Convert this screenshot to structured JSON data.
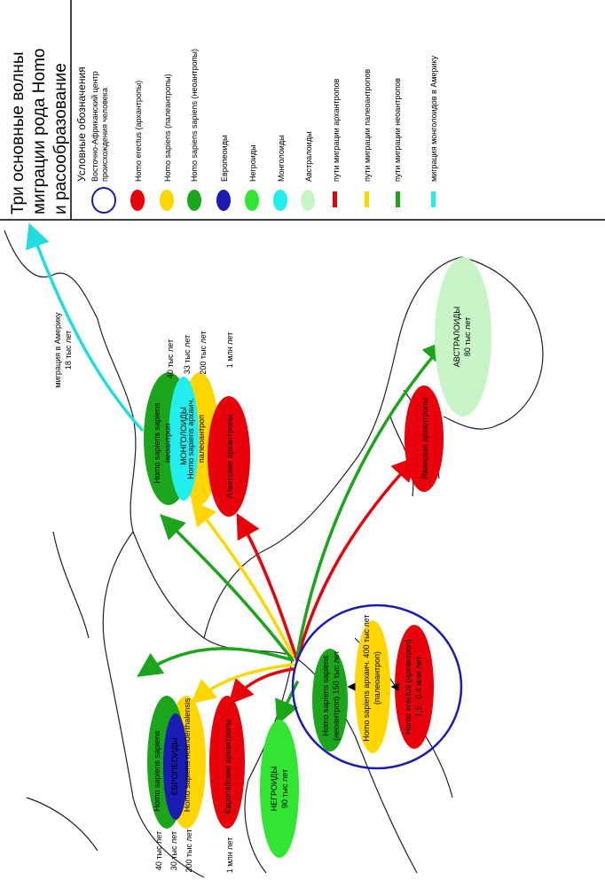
{
  "title": [
    "Три основные волны",
    "миграции рода Homo",
    "и расообразование"
  ],
  "legend": {
    "title": "Условные обозначения",
    "items": [
      {
        "lines": [
          "Восточно-Африканский центр",
          "происхождения человека"
        ]
      },
      {
        "lines": [
          "Homo erectus (архантропы)"
        ]
      },
      {
        "lines": [
          "Homo sapiens  (палеантропы)"
        ]
      },
      {
        "lines": [
          "Homo sapiens sapiens  (неоантропы)"
        ]
      },
      {
        "lines": [
          "Европеоиды"
        ]
      },
      {
        "lines": [
          "Негроиды"
        ]
      },
      {
        "lines": [
          "Монголоиды"
        ]
      },
      {
        "lines": [
          "Австралоиды"
        ]
      },
      {
        "lines": [
          "пути миграции архантропов"
        ]
      },
      {
        "lines": [
          "пути миграции палеоантропов"
        ]
      },
      {
        "lines": [
          "пути миграции неоантропов"
        ]
      },
      {
        "lines": [
          "миграция монголоидов в Америку"
        ]
      }
    ]
  },
  "labels": [
    {
      "lines": [
        "миграция в Америку",
        "18 тыс лет"
      ]
    },
    {
      "lines": [
        "Homo sapiens sapiens",
        "неоантроп"
      ]
    },
    {
      "lines": [
        "МОНГОЛОИДЫ"
      ]
    },
    {
      "lines": [
        "Homo sapiens архаич.",
        "палеоантроп"
      ]
    },
    {
      "lines": [
        "40 тыс лет"
      ]
    },
    {
      "lines": [
        "33 тыс лет"
      ]
    },
    {
      "lines": [
        "200 тыс лет"
      ]
    },
    {
      "lines": [
        "Азиатские архантропы"
      ]
    },
    {
      "lines": [
        "1 млн лет"
      ]
    },
    {
      "lines": [
        "Яванские архантропы"
      ]
    },
    {
      "lines": [
        "АВСТРАЛОИДЫ",
        "80 тыс лет"
      ]
    },
    {
      "lines": [
        "Homo sapiens sapiens",
        "(неоантроп)  150 тыс лет"
      ]
    },
    {
      "lines": [
        "Homo sapiens архаич.  400 тыс лет",
        "(палеоантроп)"
      ]
    },
    {
      "lines": [
        "Homo erectus  (архантроп)",
        "1,5 - 0,4 млн лет"
      ]
    },
    {
      "lines": [
        "НЕГРОИДЫ",
        "90 тыс лет"
      ]
    },
    {
      "lines": [
        "Homo sapiens sapiens"
      ]
    },
    {
      "lines": [
        "ЕВРОПЕОИДЫ"
      ]
    },
    {
      "lines": [
        "Homo sapiens neanderthalensis"
      ]
    },
    {
      "lines": [
        "Европейские архантропы"
      ]
    },
    {
      "lines": [
        "40 тыс лет"
      ]
    },
    {
      "lines": [
        "30 тыс лет"
      ]
    },
    {
      "lines": [
        "200 тыс лет"
      ]
    },
    {
      "lines": [
        "1 млн лет"
      ]
    }
  ]
}
